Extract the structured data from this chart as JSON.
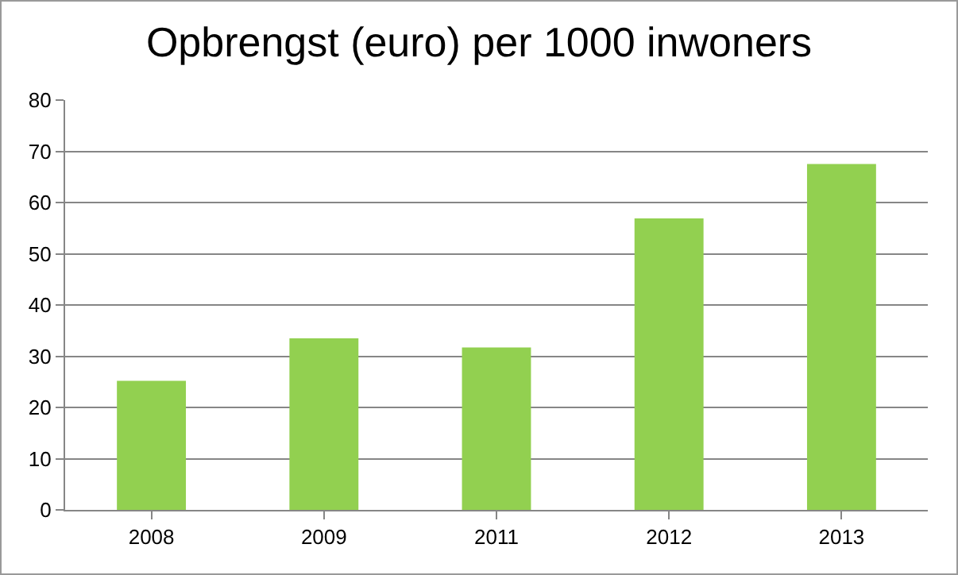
{
  "chart_data": {
    "type": "bar",
    "title": "Opbrengst (euro) per 1000 inwoners",
    "categories": [
      "2008",
      "2009",
      "2011",
      "2012",
      "2013"
    ],
    "values": [
      25.2,
      33.5,
      31.7,
      56.9,
      67.5
    ],
    "color": "#92d050",
    "ylim": [
      0,
      80
    ],
    "yticks": [
      0,
      10,
      20,
      30,
      40,
      50,
      60,
      70,
      80
    ],
    "grid": "y",
    "legend": false
  }
}
